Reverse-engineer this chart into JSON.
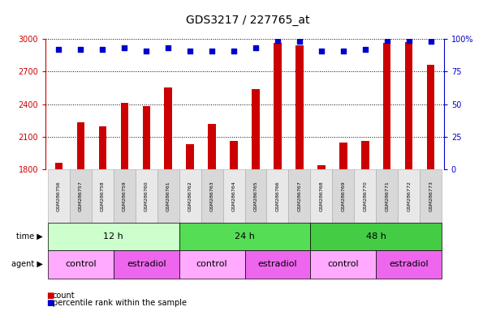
{
  "title": "GDS3217 / 227765_at",
  "samples": [
    "GSM286756",
    "GSM286757",
    "GSM286758",
    "GSM286759",
    "GSM286760",
    "GSM286761",
    "GSM286762",
    "GSM286763",
    "GSM286764",
    "GSM286765",
    "GSM286766",
    "GSM286767",
    "GSM286768",
    "GSM286769",
    "GSM286770",
    "GSM286771",
    "GSM286772",
    "GSM286773"
  ],
  "counts": [
    1860,
    2230,
    2200,
    2410,
    2380,
    2550,
    2030,
    2220,
    2060,
    2540,
    2960,
    2940,
    1840,
    2050,
    2060,
    2960,
    2970,
    2760
  ],
  "percentile_ranks": [
    92,
    92,
    92,
    93,
    91,
    93,
    91,
    91,
    91,
    93,
    99,
    98,
    91,
    91,
    92,
    99,
    99,
    98
  ],
  "ymin": 1800,
  "ymax": 3000,
  "yticks": [
    1800,
    2100,
    2400,
    2700,
    3000
  ],
  "right_yticks": [
    0,
    25,
    50,
    75,
    100
  ],
  "bar_color": "#cc0000",
  "dot_color": "#0000cc",
  "time_groups": [
    {
      "label": "12 h",
      "start": 0,
      "end": 6,
      "color": "#ccffcc"
    },
    {
      "label": "24 h",
      "start": 6,
      "end": 12,
      "color": "#55dd55"
    },
    {
      "label": "48 h",
      "start": 12,
      "end": 18,
      "color": "#44cc44"
    }
  ],
  "agent_groups": [
    {
      "label": "control",
      "start": 0,
      "end": 3,
      "color": "#ffaaff"
    },
    {
      "label": "estradiol",
      "start": 3,
      "end": 6,
      "color": "#ee66ee"
    },
    {
      "label": "control",
      "start": 6,
      "end": 9,
      "color": "#ffaaff"
    },
    {
      "label": "estradiol",
      "start": 9,
      "end": 12,
      "color": "#ee66ee"
    },
    {
      "label": "control",
      "start": 12,
      "end": 15,
      "color": "#ffaaff"
    },
    {
      "label": "estradiol",
      "start": 15,
      "end": 18,
      "color": "#ee66ee"
    }
  ],
  "col_colors": [
    "#e8e8e8",
    "#d8d8d8"
  ],
  "legend_count_label": "count",
  "legend_pct_label": "percentile rank within the sample",
  "time_label": "time",
  "agent_label": "agent",
  "left_axis_color": "#cc0000",
  "right_axis_color": "#0000cc"
}
